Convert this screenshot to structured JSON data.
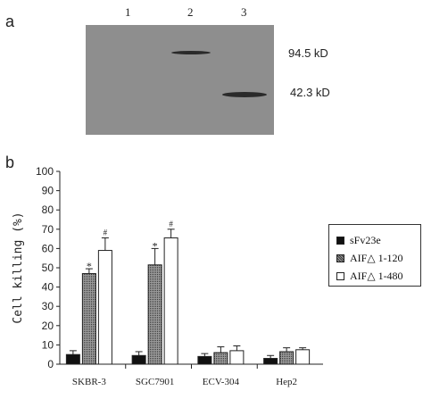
{
  "panel_a": {
    "letter": "a",
    "lanes": [
      "1",
      "2",
      "3"
    ],
    "markers": [
      "94.5 kD",
      "42.3 kD"
    ]
  },
  "panel_b": {
    "letter": "b"
  },
  "colors": {
    "series_fill": [
      "#111111",
      "url(#dots)",
      "#ffffff"
    ]
  },
  "chart_data": {
    "type": "bar",
    "categories": [
      "SKBR-3",
      "SGC7901",
      "ECV-304",
      "Hep2"
    ],
    "ylabel": "Cell killing (%)",
    "ylim": [
      0,
      100
    ],
    "yticks": [
      "0",
      "10",
      "20",
      "30",
      "40",
      "50",
      "60",
      "70",
      "80",
      "90",
      "100"
    ],
    "series": [
      {
        "name": "sFv23e",
        "values": [
          5,
          4.5,
          4,
          3
        ],
        "errors": [
          2,
          2,
          1.5,
          1.5
        ]
      },
      {
        "name": "AIF△ 1-120",
        "values": [
          47,
          51.5,
          6,
          6.5
        ],
        "errors": [
          2.5,
          8.5,
          3,
          2
        ]
      },
      {
        "name": "AIF△ 1-480",
        "values": [
          59,
          65.5,
          7,
          7.5
        ],
        "errors": [
          6.5,
          4.5,
          2.5,
          1
        ]
      }
    ],
    "annotations": [
      {
        "category": "SKBR-3",
        "series": "AIF△ 1-120",
        "text": "*"
      },
      {
        "category": "SKBR-3",
        "series": "AIF△ 1-480",
        "text": "#"
      },
      {
        "category": "SGC7901",
        "series": "AIF△ 1-120",
        "text": "*"
      },
      {
        "category": "SGC7901",
        "series": "AIF△ 1-480",
        "text": "#"
      }
    ],
    "legend_position": "right"
  }
}
